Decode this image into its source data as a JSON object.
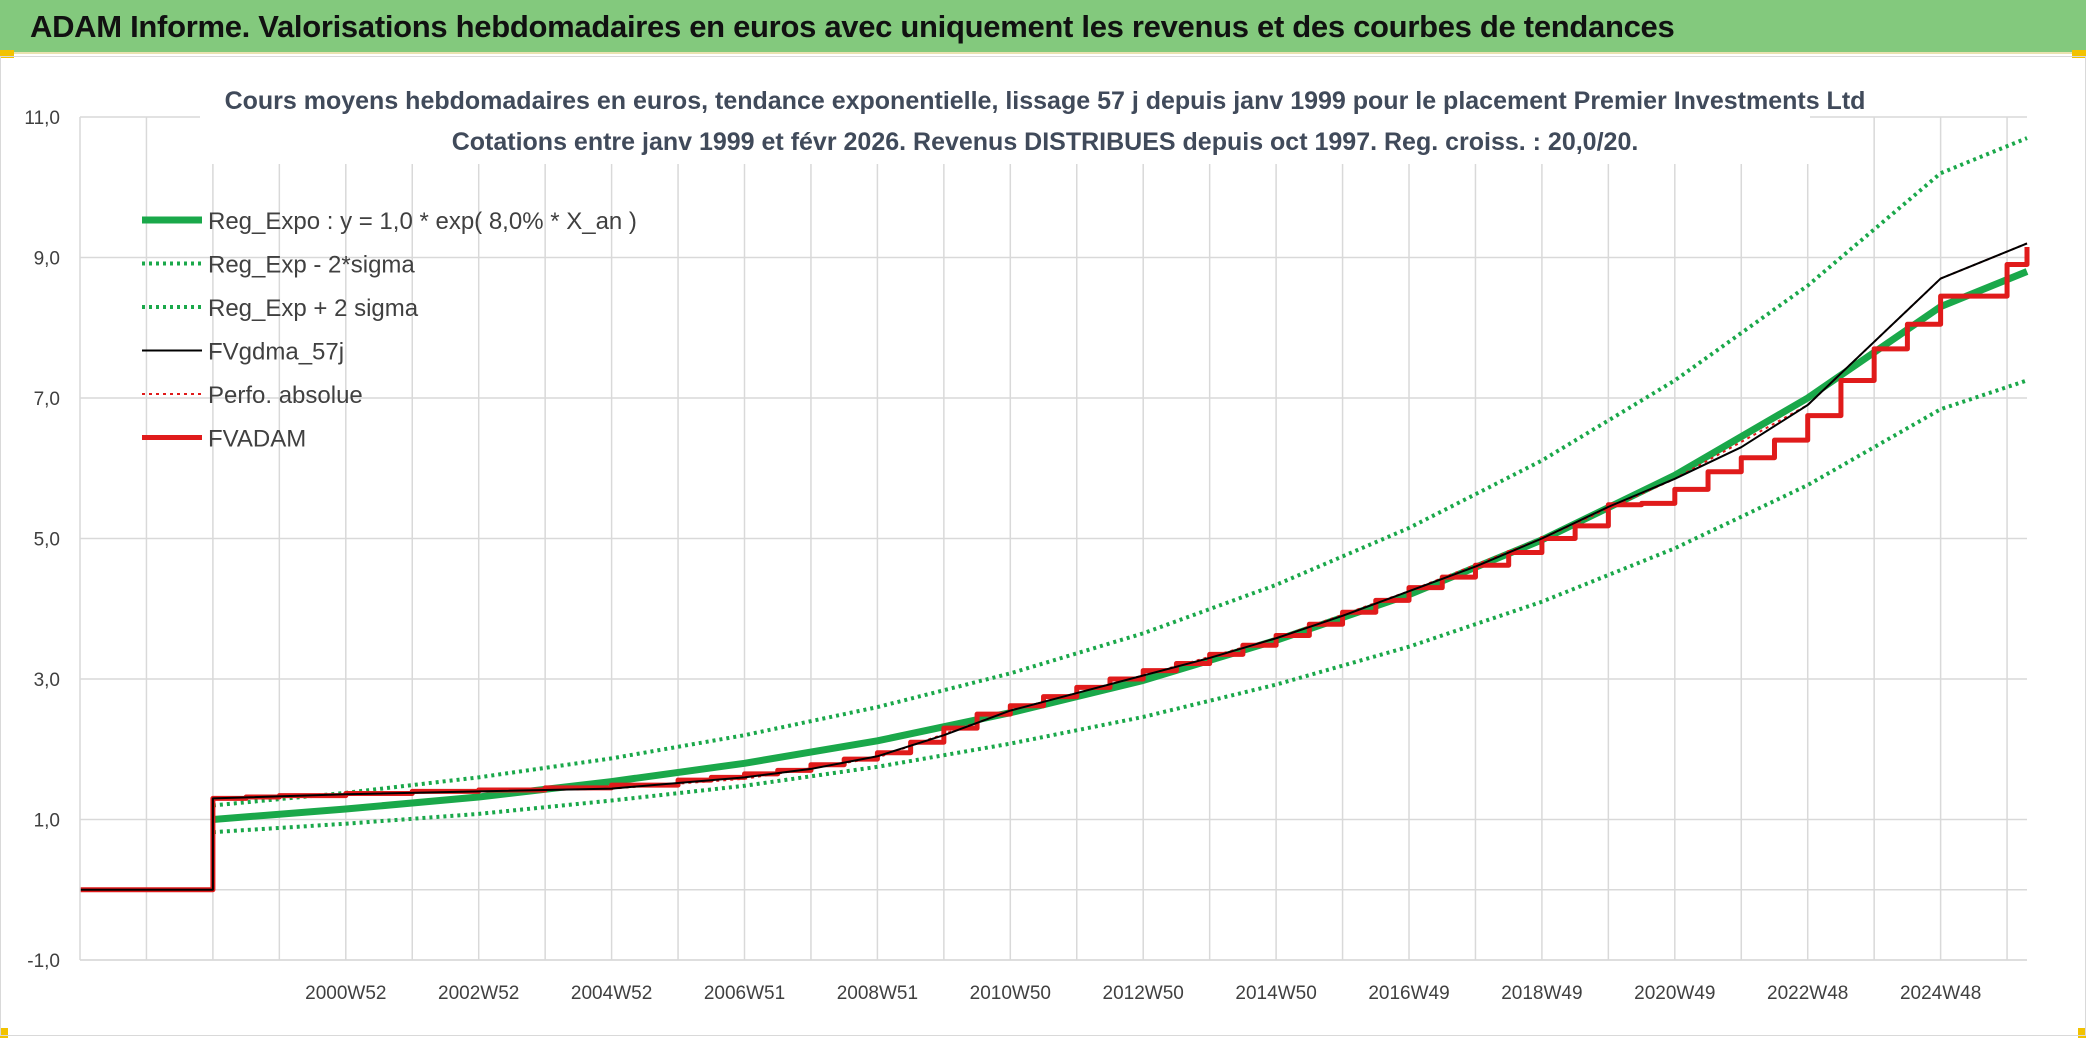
{
  "banner": {
    "title": "ADAM Informe. Valorisations hebdomadaires en euros avec uniquement les revenus et des courbes de tendances"
  },
  "colors": {
    "banner": "#83c97d",
    "green": "#1aa84a",
    "black": "#000000",
    "red": "#e01b1b",
    "grid": "#d9d9d9"
  },
  "chart_data": {
    "type": "line",
    "title": "Cours moyens hebdomadaires en euros, tendance exponentielle, lissage 57 j depuis janv 1999 pour le placement Premier Investments Ltd",
    "subtitle": "Cotations entre janv 1999 et févr 2026. Revenus DISTRIBUES depuis oct 1997. Reg. croiss. : 20,0/20.",
    "xlabel": "",
    "ylabel": "",
    "xlim": [
      1997.0,
      2026.3
    ],
    "ylim": [
      -1.0,
      11.0
    ],
    "yticks": [
      -1.0,
      1.0,
      3.0,
      5.0,
      7.0,
      9.0,
      11.0
    ],
    "ytick_labels": [
      "-1,0",
      "1,0",
      "3,0",
      "5,0",
      "7,0",
      "9,0",
      "11,0"
    ],
    "ygrid_minor": [
      0.0
    ],
    "xticks": [
      2001.0,
      2003.0,
      2005.0,
      2007.0,
      2009.0,
      2011.0,
      2013.0,
      2015.0,
      2017.0,
      2019.0,
      2021.0,
      2023.0,
      2025.0
    ],
    "xtick_labels": [
      "2000W52",
      "2002W52",
      "2004W52",
      "2006W51",
      "2008W51",
      "2010W50",
      "2012W50",
      "2014W50",
      "2016W49",
      "2018W49",
      "2020W49",
      "2022W48",
      "2024W48"
    ],
    "xgrid": [
      1998.0,
      1999.0,
      2000.0,
      2001.0,
      2002.0,
      2003.0,
      2004.0,
      2005.0,
      2006.0,
      2007.0,
      2008.0,
      2009.0,
      2010.0,
      2011.0,
      2012.0,
      2013.0,
      2014.0,
      2015.0,
      2016.0,
      2017.0,
      2018.0,
      2019.0,
      2020.0,
      2021.0,
      2022.0,
      2023.0,
      2024.0,
      2025.0,
      2026.0
    ],
    "legend_position": "top-left",
    "series": [
      {
        "name": "Reg_Expo : y = 1,0 * exp( 8,0% *  X_an )",
        "style": "solid",
        "color": "#1aa84a",
        "width": 7,
        "x": [
          1999.0,
          2001,
          2003,
          2005,
          2007,
          2009,
          2011,
          2013,
          2015,
          2017,
          2019,
          2021,
          2023,
          2025,
          2026.3
        ],
        "y": [
          1.0,
          1.15,
          1.32,
          1.54,
          1.8,
          2.12,
          2.52,
          2.98,
          3.55,
          4.2,
          4.98,
          5.9,
          7.0,
          8.3,
          8.8
        ]
      },
      {
        "name": "Reg_Exp - 2*sigma",
        "style": "dotted",
        "color": "#1aa84a",
        "width": 4,
        "x": [
          1999.0,
          2001,
          2003,
          2005,
          2007,
          2009,
          2011,
          2013,
          2015,
          2017,
          2019,
          2021,
          2023,
          2025,
          2026.3
        ],
        "y": [
          0.82,
          0.94,
          1.08,
          1.27,
          1.48,
          1.75,
          2.08,
          2.46,
          2.92,
          3.46,
          4.1,
          4.86,
          5.76,
          6.84,
          7.25
        ]
      },
      {
        "name": "Reg_Exp + 2 sigma",
        "style": "dotted",
        "color": "#1aa84a",
        "width": 4,
        "x": [
          1999.0,
          2001,
          2003,
          2005,
          2007,
          2009,
          2011,
          2013,
          2015,
          2017,
          2019,
          2021,
          2023,
          2025,
          2026.3
        ],
        "y": [
          1.2,
          1.38,
          1.6,
          1.87,
          2.2,
          2.6,
          3.08,
          3.65,
          4.34,
          5.15,
          6.11,
          7.25,
          8.6,
          10.2,
          10.7
        ]
      },
      {
        "name": "FVgdma_57j",
        "style": "solid",
        "color": "#000000",
        "width": 2,
        "x": [
          1997.0,
          1999.0,
          1999.0,
          2001,
          2003,
          2005,
          2007,
          2008,
          2009,
          2010,
          2011,
          2012,
          2013,
          2014,
          2015,
          2016,
          2017,
          2018,
          2019,
          2020,
          2021,
          2022,
          2023,
          2024,
          2025,
          2026.3
        ],
        "y": [
          0.0,
          0.0,
          1.3,
          1.36,
          1.4,
          1.44,
          1.6,
          1.72,
          1.9,
          2.2,
          2.55,
          2.8,
          3.05,
          3.3,
          3.58,
          3.9,
          4.25,
          4.6,
          5.0,
          5.45,
          5.85,
          6.3,
          6.9,
          7.8,
          8.7,
          9.2
        ]
      },
      {
        "name": "Perfo. absolue",
        "style": "dotted",
        "color": "#e01b1b",
        "width": 2,
        "x": [
          1997.0,
          1999.0,
          1999.0,
          2001,
          2003,
          2005,
          2007,
          2009,
          2011,
          2013,
          2015,
          2017,
          2019,
          2021,
          2023,
          2025,
          2026.3
        ],
        "y": [
          0.0,
          0.0,
          1.3,
          1.36,
          1.4,
          1.44,
          1.58,
          1.88,
          2.55,
          3.05,
          3.58,
          4.25,
          5.0,
          5.85,
          6.9,
          8.7,
          9.2
        ]
      },
      {
        "name": "FVADAM",
        "style": "step",
        "color": "#e01b1b",
        "width": 5,
        "x": [
          1997.0,
          1999.0,
          1999.0,
          1999.5,
          2000,
          2001,
          2002,
          2003,
          2004,
          2005,
          2006,
          2006.5,
          2007,
          2007.5,
          2008,
          2008.5,
          2009,
          2009.5,
          2010,
          2010.5,
          2011,
          2011.5,
          2012,
          2012.5,
          2013,
          2013.5,
          2014,
          2014.5,
          2015,
          2015.5,
          2016,
          2016.5,
          2017,
          2017.5,
          2018,
          2018.5,
          2019,
          2019.5,
          2020,
          2020.5,
          2021,
          2021.5,
          2022,
          2022.5,
          2023,
          2023.5,
          2024,
          2024.5,
          2025,
          2026.0,
          2026.3
        ],
        "y": [
          0.0,
          0.0,
          1.3,
          1.32,
          1.34,
          1.37,
          1.4,
          1.42,
          1.45,
          1.49,
          1.56,
          1.6,
          1.65,
          1.7,
          1.78,
          1.86,
          1.95,
          2.1,
          2.3,
          2.5,
          2.62,
          2.75,
          2.88,
          3.0,
          3.12,
          3.22,
          3.35,
          3.48,
          3.62,
          3.78,
          3.95,
          4.12,
          4.3,
          4.45,
          4.62,
          4.8,
          5.0,
          5.18,
          5.48,
          5.5,
          5.7,
          5.95,
          6.15,
          6.4,
          6.75,
          7.25,
          7.7,
          8.05,
          8.45,
          8.9,
          9.15
        ]
      }
    ]
  }
}
